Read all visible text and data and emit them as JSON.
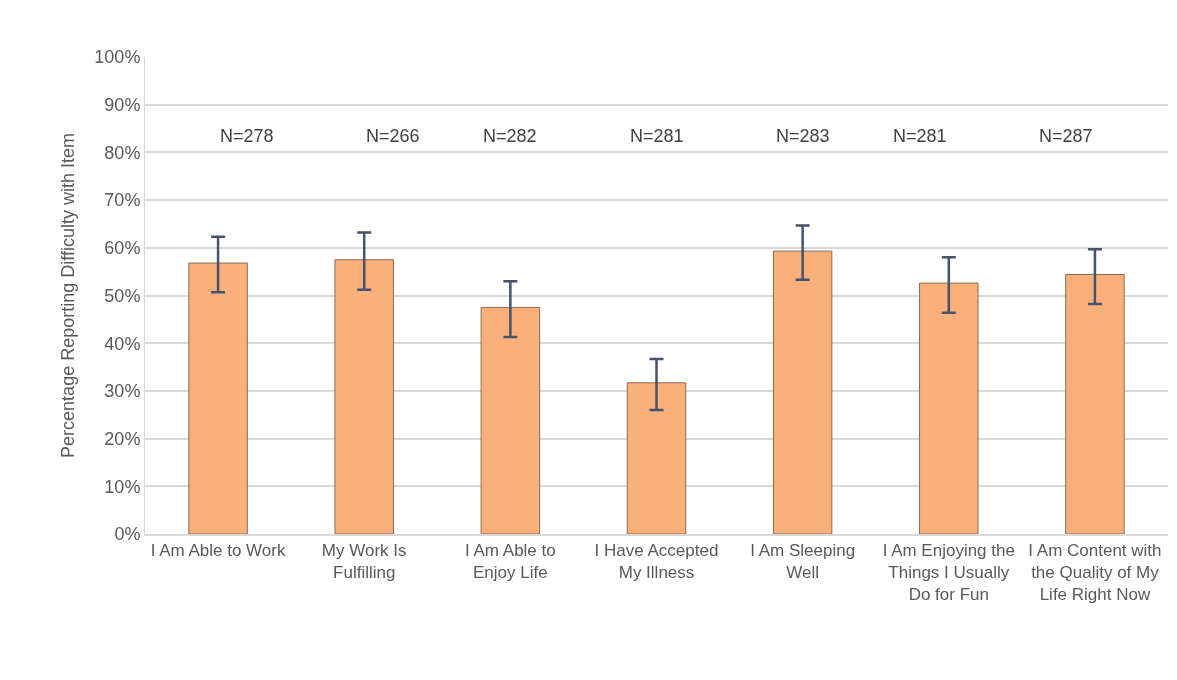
{
  "chart_data": {
    "type": "bar",
    "ylabel": "Percentage Reporting Difficulty with Item",
    "categories": [
      "I Am Able to Work",
      "My Work Is Fulfilling",
      "I Am Able to Enjoy Life",
      "I Have Accepted My Illness",
      "I Am Sleeping Well",
      "I Am Enjoying the Things I Usually Do for Fun",
      "I Am Content with the Quality of My Life Right Now"
    ],
    "values": [
      56.8,
      57.5,
      47.5,
      31.7,
      59.3,
      52.6,
      54.4
    ],
    "errors": [
      [
        50.7,
        62.3
      ],
      [
        51.2,
        63.2
      ],
      [
        41.3,
        53.0
      ],
      [
        26.0,
        36.7
      ],
      [
        53.3,
        64.7
      ],
      [
        46.4,
        58.0
      ],
      [
        48.2,
        59.7
      ]
    ],
    "color": "#fbb07c",
    "ylim": [
      0,
      100
    ],
    "yticks": [
      {
        "value": 0,
        "label": "0%"
      },
      {
        "value": 10,
        "label": "10%"
      },
      {
        "value": 20,
        "label": "20%"
      },
      {
        "value": 30,
        "label": "30%"
      },
      {
        "value": 40,
        "label": "40%"
      },
      {
        "value": 50,
        "label": "50%"
      },
      {
        "value": 60,
        "label": "60%"
      },
      {
        "value": 70,
        "label": "70%"
      },
      {
        "value": 80,
        "label": "80%"
      },
      {
        "value": 90,
        "label": "90%"
      },
      {
        "value": 100,
        "label": "100%"
      }
    ],
    "grid": "y",
    "annotations": [
      "N=278",
      "N=266",
      "N=282",
      "N=281",
      "N=283",
      "N=281",
      "N=287"
    ]
  }
}
